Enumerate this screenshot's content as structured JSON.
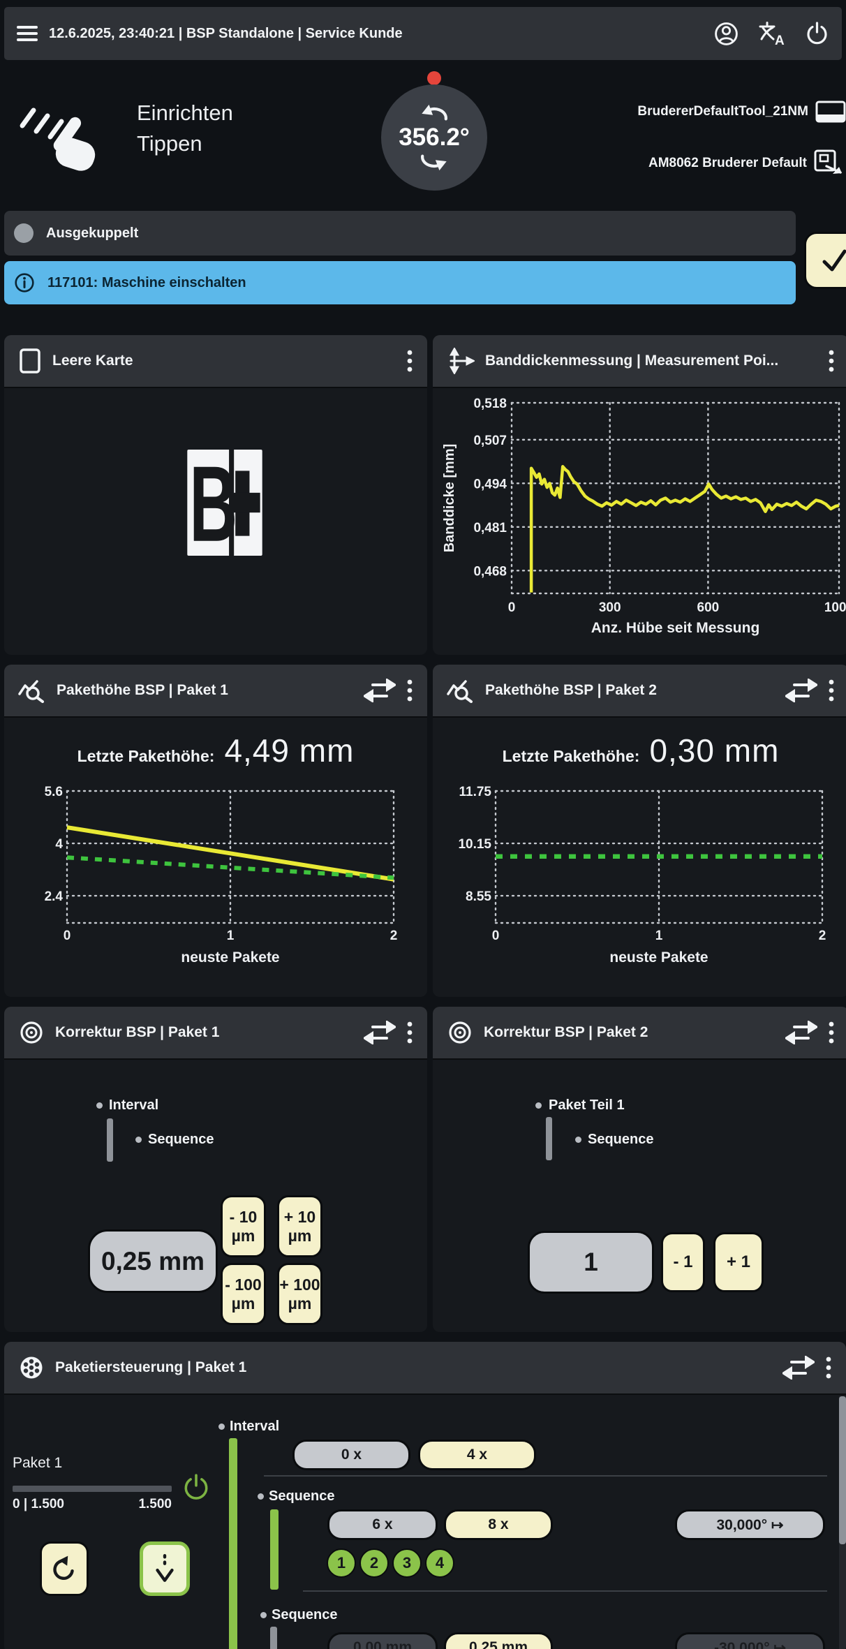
{
  "topbar": {
    "title": "12.6.2025, 23:40:21 | BSP Standalone | Service Kunde"
  },
  "header": {
    "mode_line1": "Einrichten",
    "mode_line2": "Tippen",
    "angle": "356.2°",
    "tool": "BrudererDefaultTool_21NM",
    "machine": "AM8062 Bruderer Default"
  },
  "status": {
    "state": "Ausgekuppelt",
    "message": "117101: Maschine einschalten"
  },
  "icons": {
    "topbar": [
      "menu",
      "account-circle",
      "translate",
      "power"
    ],
    "header": [
      "tap-hand",
      "rotate-ccw",
      "rotate-cw",
      "tool",
      "export"
    ],
    "cards": [
      "checkbox",
      "measure-arrows",
      "chart-search",
      "target",
      "wheel",
      "swap-horizontal",
      "kebab-menu",
      "timer-power",
      "reset-rotate",
      "download-arrow",
      "check"
    ]
  },
  "cards": {
    "leere": {
      "title": "Leere Karte",
      "logo_letter": "B"
    },
    "band": {
      "title": "Banddickenmessung | Measurement Poi..."
    },
    "ph1": {
      "title": "Pakethöhe BSP | Paket 1",
      "value_label": "Letzte Pakethöhe:",
      "value": "4,49 mm"
    },
    "ph2": {
      "title": "Pakethöhe BSP | Paket 2",
      "value_label": "Letzte Pakethöhe:",
      "value": "0,30 mm"
    },
    "kor1": {
      "title": "Korrektur BSP | Paket 1",
      "node1": "Interval",
      "node2": "Sequence",
      "value": "0,25 mm",
      "btn_m10": {
        "l1": "- 10",
        "l2": "µm"
      },
      "btn_p10": {
        "l1": "+ 10",
        "l2": "µm"
      },
      "btn_m100": {
        "l1": "- 100",
        "l2": "µm"
      },
      "btn_p100": {
        "l1": "+ 100",
        "l2": "µm"
      }
    },
    "kor2": {
      "title": "Korrektur BSP | Paket 2",
      "node1": "Paket Teil 1",
      "node2": "Sequence",
      "value": "1",
      "btn_minus": "- 1",
      "btn_plus": "+ 1"
    },
    "pak": {
      "title": "Paketiersteuerung | Paket 1",
      "paket_label": "Paket 1",
      "counter": "0 | 1.500",
      "total": "1.500",
      "interval_label": "Interval",
      "seq1_label": "Sequence",
      "seq2_label": "Sequence",
      "btn_0x": "0 x",
      "btn_4x": "4 x",
      "btn_6x": "6 x",
      "btn_8x": "8 x",
      "btn_fwd": "30,000° ↦",
      "btn_back": "-30,000° ↦",
      "btn_0mm": "0,00 mm",
      "btn_025mm": "0,25 mm",
      "circles": [
        "1",
        "2",
        "3",
        "4"
      ]
    }
  },
  "colors": {
    "accent_green": "#8bc34a",
    "cream": "#f5f1cb",
    "info_blue": "#5cb8ea",
    "line_yellow": "#e9e935",
    "line_green": "#3ec43e",
    "header_gray": "#2f3237"
  },
  "chart_data": [
    {
      "name": "banddickenmessung",
      "type": "line",
      "title": "",
      "xlabel": "Anz. Hübe seit Messung",
      "ylabel": "Banddicke [mm]",
      "xlim": [
        0,
        1000
      ],
      "ylim": [
        0.4612,
        0.518
      ],
      "grid": true,
      "legend": "none",
      "x_ticks": [
        {
          "v": 0,
          "label": "0"
        },
        {
          "v": 300,
          "label": "300"
        },
        {
          "v": 600,
          "label": "600"
        },
        {
          "v": 1000,
          "label": "1000"
        }
      ],
      "y_ticks": [
        {
          "v": 0.518,
          "label": "0,518"
        },
        {
          "v": 0.507,
          "label": "0,507"
        },
        {
          "v": 0.494,
          "label": "0,494"
        },
        {
          "v": 0.481,
          "label": "0,481"
        },
        {
          "v": 0.468,
          "label": "0,468"
        }
      ],
      "series": [
        {
          "name": "Banddicke",
          "color": "#e9e935",
          "width": 4.5,
          "dash": "",
          "points": [
            [
              60,
              0.4615
            ],
            [
              60,
              0.4985
            ],
            [
              68,
              0.4972
            ],
            [
              76,
              0.4958
            ],
            [
              84,
              0.4968
            ],
            [
              92,
              0.4938
            ],
            [
              100,
              0.4952
            ],
            [
              108,
              0.4928
            ],
            [
              116,
              0.494
            ],
            [
              124,
              0.4912
            ],
            [
              132,
              0.4905
            ],
            [
              140,
              0.4926
            ],
            [
              148,
              0.4898
            ],
            [
              156,
              0.499
            ],
            [
              164,
              0.4981
            ],
            [
              172,
              0.4975
            ],
            [
              180,
              0.496
            ],
            [
              190,
              0.4945
            ],
            [
              200,
              0.4938
            ],
            [
              212,
              0.4918
            ],
            [
              224,
              0.4902
            ],
            [
              236,
              0.4893
            ],
            [
              248,
              0.4887
            ],
            [
              262,
              0.4878
            ],
            [
              276,
              0.4872
            ],
            [
              290,
              0.4882
            ],
            [
              305,
              0.4875
            ],
            [
              320,
              0.4886
            ],
            [
              335,
              0.4878
            ],
            [
              350,
              0.489
            ],
            [
              365,
              0.4882
            ],
            [
              380,
              0.4874
            ],
            [
              395,
              0.4884
            ],
            [
              410,
              0.4878
            ],
            [
              425,
              0.4888
            ],
            [
              440,
              0.4876
            ],
            [
              455,
              0.489
            ],
            [
              470,
              0.4896
            ],
            [
              485,
              0.4884
            ],
            [
              500,
              0.489
            ],
            [
              515,
              0.4884
            ],
            [
              530,
              0.4894
            ],
            [
              545,
              0.4886
            ],
            [
              560,
              0.4896
            ],
            [
              575,
              0.4906
            ],
            [
              590,
              0.4916
            ],
            [
              602,
              0.4938
            ],
            [
              612,
              0.4922
            ],
            [
              625,
              0.4908
            ],
            [
              640,
              0.4896
            ],
            [
              655,
              0.4902
            ],
            [
              670,
              0.4894
            ],
            [
              685,
              0.49
            ],
            [
              700,
              0.4892
            ],
            [
              715,
              0.4896
            ],
            [
              730,
              0.4886
            ],
            [
              745,
              0.4892
            ],
            [
              760,
              0.4882
            ],
            [
              775,
              0.4856
            ],
            [
              785,
              0.4876
            ],
            [
              795,
              0.4862
            ],
            [
              810,
              0.4878
            ],
            [
              825,
              0.4872
            ],
            [
              840,
              0.488
            ],
            [
              855,
              0.4874
            ],
            [
              870,
              0.4884
            ],
            [
              885,
              0.4872
            ],
            [
              900,
              0.4864
            ],
            [
              915,
              0.4878
            ],
            [
              930,
              0.489
            ],
            [
              945,
              0.4886
            ],
            [
              960,
              0.4878
            ],
            [
              975,
              0.4864
            ],
            [
              990,
              0.4872
            ],
            [
              1000,
              0.4874
            ]
          ]
        }
      ]
    },
    {
      "name": "pakethoehe_paket1",
      "type": "line",
      "title": "",
      "xlabel": "neuste Pakete",
      "ylabel": "",
      "xlim": [
        0,
        2
      ],
      "ylim": [
        1.57,
        5.6
      ],
      "grid": true,
      "legend": "none",
      "x_ticks": [
        {
          "v": 0,
          "label": "0"
        },
        {
          "v": 1,
          "label": "1"
        },
        {
          "v": 2,
          "label": "2"
        }
      ],
      "y_ticks": [
        {
          "v": 5.6,
          "label": "5.6"
        },
        {
          "v": 4,
          "label": "4"
        },
        {
          "v": 2.4,
          "label": "2.4"
        }
      ],
      "series": [
        {
          "name": "Pakethöhe",
          "color": "#e9e935",
          "width": 6,
          "dash": "",
          "points": [
            [
              0,
              4.49
            ],
            [
              2,
              2.9
            ]
          ]
        },
        {
          "name": "Sollwert",
          "color": "#3ec43e",
          "width": 6,
          "dash": "10 10",
          "points": [
            [
              0,
              3.57
            ],
            [
              2,
              2.95
            ]
          ]
        }
      ]
    },
    {
      "name": "pakethoehe_paket2",
      "type": "line",
      "title": "",
      "xlabel": "neuste Pakete",
      "ylabel": "",
      "xlim": [
        0,
        2
      ],
      "ylim": [
        7.72,
        11.75
      ],
      "grid": true,
      "legend": "none",
      "x_ticks": [
        {
          "v": 0,
          "label": "0"
        },
        {
          "v": 1,
          "label": "1"
        },
        {
          "v": 2,
          "label": "2"
        }
      ],
      "y_ticks": [
        {
          "v": 11.75,
          "label": "11.75"
        },
        {
          "v": 10.15,
          "label": "10.15"
        },
        {
          "v": 8.55,
          "label": "8.55"
        }
      ],
      "series": [
        {
          "name": "Sollwert",
          "color": "#3ec43e",
          "width": 6.5,
          "dash": "10 11",
          "points": [
            [
              0,
              9.75
            ],
            [
              2,
              9.75
            ]
          ]
        }
      ]
    }
  ]
}
